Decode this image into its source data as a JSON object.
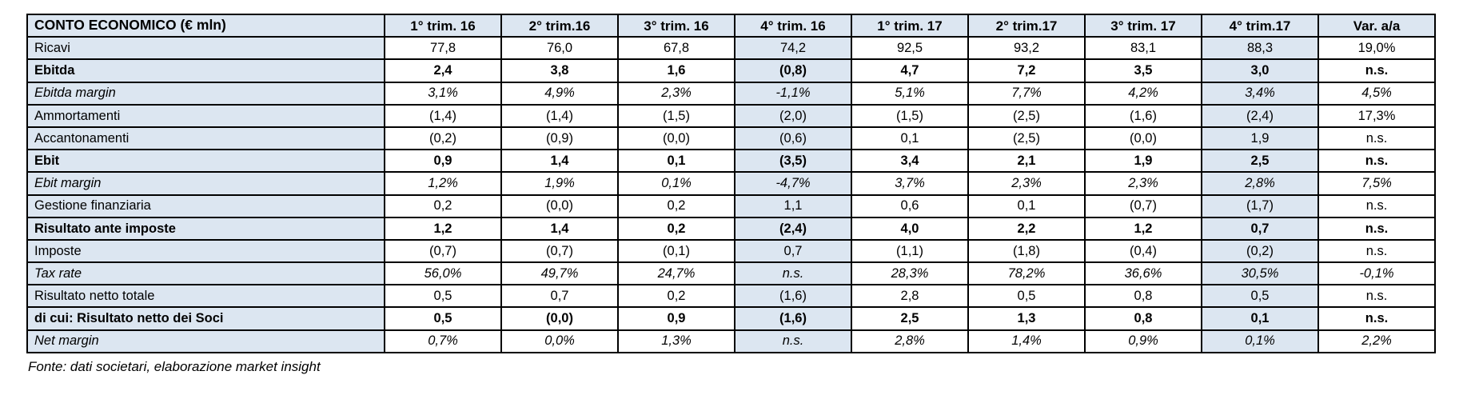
{
  "colors": {
    "shade": "#DCE6F1",
    "border": "#000000",
    "text": "#000000",
    "background": "#FFFFFF"
  },
  "footer": {
    "source": "Fonte: dati societari, elaborazione market insight"
  },
  "chart_data": {
    "type": "table",
    "title": "CONTO ECONOMICO (€ mln)",
    "columns": [
      "1° trim. 16",
      "2° trim.16",
      "3° trim. 16",
      "4° trim. 16",
      "1° trim. 17",
      "2° trim.17",
      "3° trim. 17",
      "4° trim.17",
      "Var. a/a"
    ],
    "highlighted_column_indices": [
      3,
      7
    ],
    "legend_position": "none",
    "grid": "full-black-borders",
    "rows": [
      {
        "label": "Ricavi",
        "style": "normal",
        "values": [
          "77,8",
          "76,0",
          "67,8",
          "74,2",
          "92,5",
          "93,2",
          "83,1",
          "88,3",
          "19,0%"
        ]
      },
      {
        "label": "Ebitda",
        "style": "bold",
        "values": [
          "2,4",
          "3,8",
          "1,6",
          "(0,8)",
          "4,7",
          "7,2",
          "3,5",
          "3,0",
          "n.s."
        ]
      },
      {
        "label": "Ebitda margin",
        "style": "italic",
        "values": [
          "3,1%",
          "4,9%",
          "2,3%",
          "-1,1%",
          "5,1%",
          "7,7%",
          "4,2%",
          "3,4%",
          "4,5%"
        ]
      },
      {
        "label": "Ammortamenti",
        "style": "normal",
        "values": [
          "(1,4)",
          "(1,4)",
          "(1,5)",
          "(2,0)",
          "(1,5)",
          "(2,5)",
          "(1,6)",
          "(2,4)",
          "17,3%"
        ]
      },
      {
        "label": "Accantonamenti",
        "style": "normal",
        "values": [
          "(0,2)",
          "(0,9)",
          "(0,0)",
          "(0,6)",
          "0,1",
          "(2,5)",
          "(0,0)",
          "1,9",
          "n.s."
        ]
      },
      {
        "label": "Ebit",
        "style": "bold",
        "values": [
          "0,9",
          "1,4",
          "0,1",
          "(3,5)",
          "3,4",
          "2,1",
          "1,9",
          "2,5",
          "n.s."
        ]
      },
      {
        "label": "Ebit margin",
        "style": "italic",
        "values": [
          "1,2%",
          "1,9%",
          "0,1%",
          "-4,7%",
          "3,7%",
          "2,3%",
          "2,3%",
          "2,8%",
          "7,5%"
        ]
      },
      {
        "label": "Gestione finanziaria",
        "style": "normal",
        "values": [
          "0,2",
          "(0,0)",
          "0,2",
          "1,1",
          "0,6",
          "0,1",
          "(0,7)",
          "(1,7)",
          "n.s."
        ]
      },
      {
        "label": "Risultato ante imposte",
        "style": "bold",
        "values": [
          "1,2",
          "1,4",
          "0,2",
          "(2,4)",
          "4,0",
          "2,2",
          "1,2",
          "0,7",
          "n.s."
        ]
      },
      {
        "label": "Imposte",
        "style": "normal",
        "values": [
          "(0,7)",
          "(0,7)",
          "(0,1)",
          "0,7",
          "(1,1)",
          "(1,8)",
          "(0,4)",
          "(0,2)",
          "n.s."
        ]
      },
      {
        "label": "Tax rate",
        "style": "italic",
        "values": [
          "56,0%",
          "49,7%",
          "24,7%",
          "n.s.",
          "28,3%",
          "78,2%",
          "36,6%",
          "30,5%",
          "-0,1%"
        ]
      },
      {
        "label": "Risultato netto totale",
        "style": "normal",
        "values": [
          "0,5",
          "0,7",
          "0,2",
          "(1,6)",
          "2,8",
          "0,5",
          "0,8",
          "0,5",
          "n.s."
        ]
      },
      {
        "label": "di cui: Risultato netto dei Soci",
        "style": "bold",
        "values": [
          "0,5",
          "(0,0)",
          "0,9",
          "(1,6)",
          "2,5",
          "1,3",
          "0,8",
          "0,1",
          "n.s."
        ]
      },
      {
        "label": "Net margin",
        "style": "italic",
        "values": [
          "0,7%",
          "0,0%",
          "1,3%",
          "n.s.",
          "2,8%",
          "1,4%",
          "0,9%",
          "0,1%",
          "2,2%"
        ]
      }
    ]
  }
}
